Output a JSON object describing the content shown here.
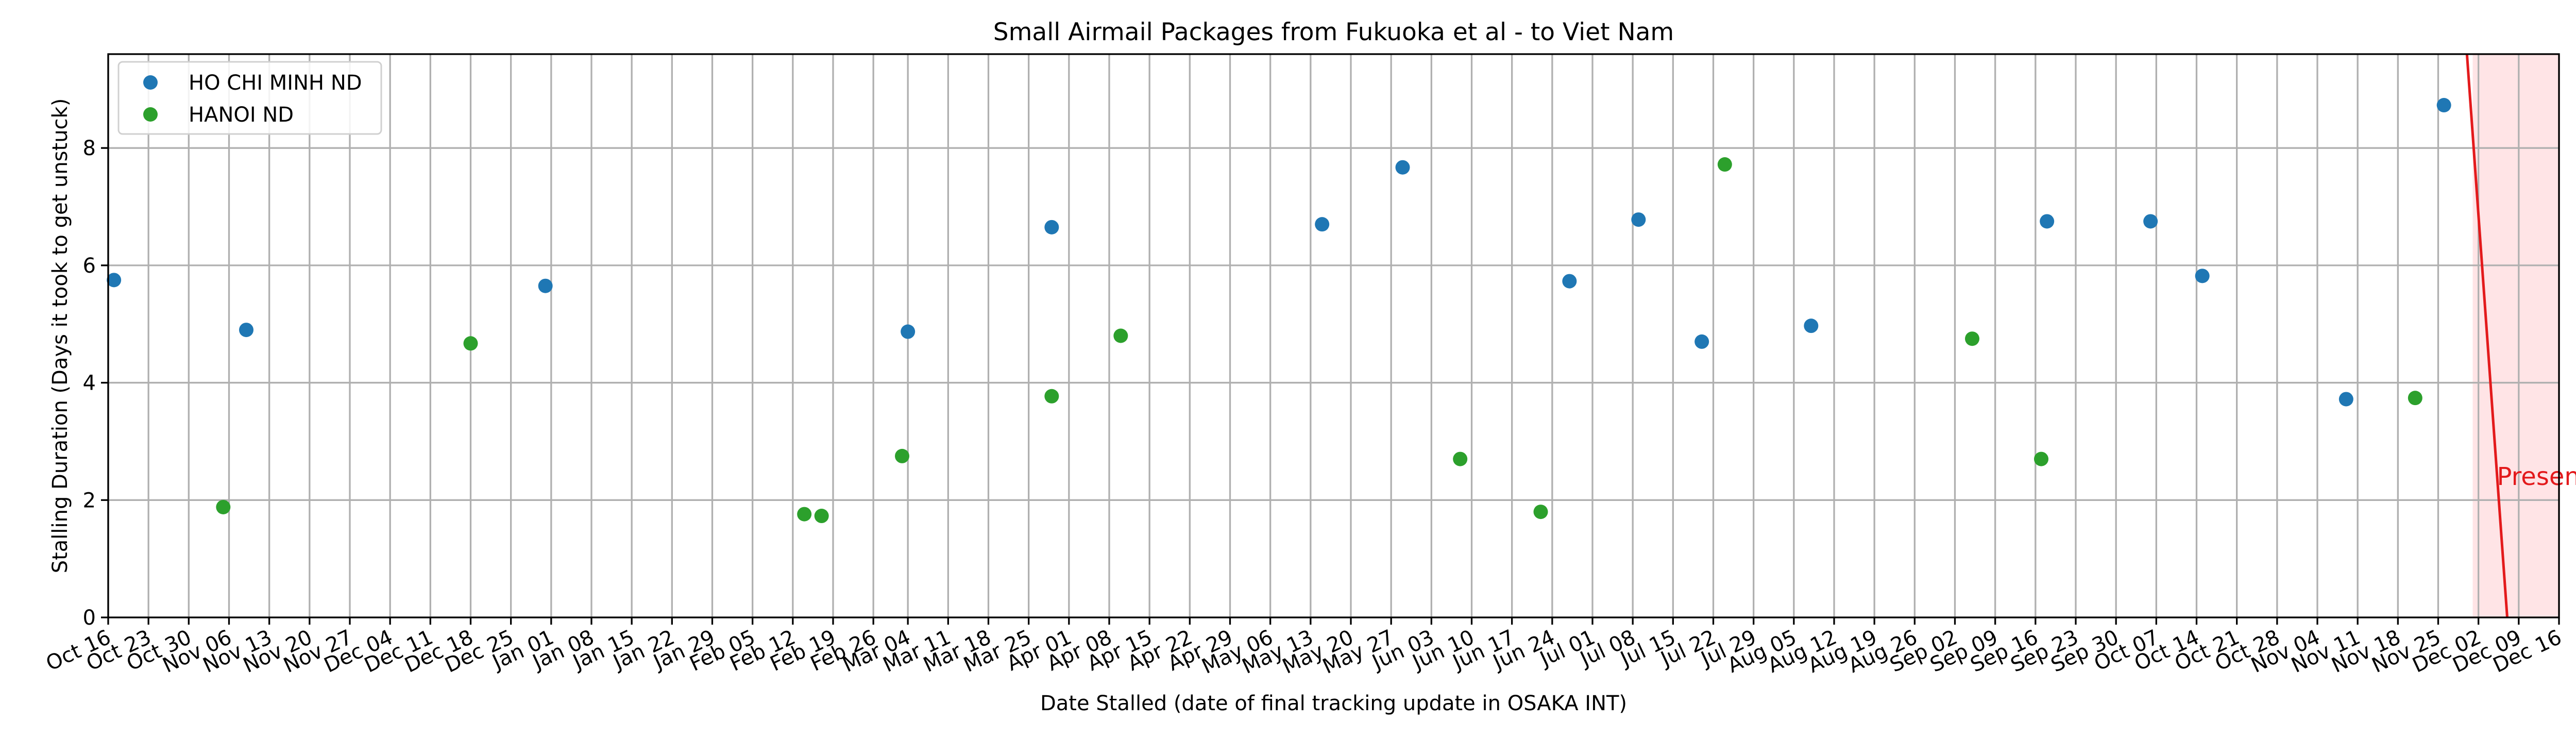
{
  "chart_data": {
    "type": "scatter",
    "title": "Small Airmail Packages from Fukuoka et al - to Viet Nam",
    "xlabel": "Date Stalled (date of final tracking update in OSAKA INT)",
    "ylabel": "Stalling Duration (Days it took to get unstuck)",
    "xlim": [
      "2022-10-16",
      "2023-12-16"
    ],
    "ylim": [
      0,
      9.6
    ],
    "yticks": [
      0,
      2,
      4,
      6,
      8
    ],
    "xticks": [
      {
        "date": "2022-10-16",
        "label": "Oct 16"
      },
      {
        "date": "2022-10-23",
        "label": "Oct 23"
      },
      {
        "date": "2022-10-30",
        "label": "Oct 30"
      },
      {
        "date": "2022-11-06",
        "label": "Nov 06"
      },
      {
        "date": "2022-11-13",
        "label": "Nov 13"
      },
      {
        "date": "2022-11-20",
        "label": "Nov 20"
      },
      {
        "date": "2022-11-27",
        "label": "Nov 27"
      },
      {
        "date": "2022-12-04",
        "label": "Dec 04"
      },
      {
        "date": "2022-12-11",
        "label": "Dec 11"
      },
      {
        "date": "2022-12-18",
        "label": "Dec 18"
      },
      {
        "date": "2022-12-25",
        "label": "Dec 25"
      },
      {
        "date": "2023-01-01",
        "label": "Jan 01"
      },
      {
        "date": "2023-01-08",
        "label": "Jan 08"
      },
      {
        "date": "2023-01-15",
        "label": "Jan 15"
      },
      {
        "date": "2023-01-22",
        "label": "Jan 22"
      },
      {
        "date": "2023-01-29",
        "label": "Jan 29"
      },
      {
        "date": "2023-02-05",
        "label": "Feb 05"
      },
      {
        "date": "2023-02-12",
        "label": "Feb 12"
      },
      {
        "date": "2023-02-19",
        "label": "Feb 19"
      },
      {
        "date": "2023-02-26",
        "label": "Feb 26"
      },
      {
        "date": "2023-03-04",
        "label": "Mar 04"
      },
      {
        "date": "2023-03-11",
        "label": "Mar 11"
      },
      {
        "date": "2023-03-18",
        "label": "Mar 18"
      },
      {
        "date": "2023-03-25",
        "label": "Mar 25"
      },
      {
        "date": "2023-04-01",
        "label": "Apr 01"
      },
      {
        "date": "2023-04-08",
        "label": "Apr 08"
      },
      {
        "date": "2023-04-15",
        "label": "Apr 15"
      },
      {
        "date": "2023-04-22",
        "label": "Apr 22"
      },
      {
        "date": "2023-04-29",
        "label": "Apr 29"
      },
      {
        "date": "2023-05-06",
        "label": "May 06"
      },
      {
        "date": "2023-05-13",
        "label": "May 13"
      },
      {
        "date": "2023-05-20",
        "label": "May 20"
      },
      {
        "date": "2023-05-27",
        "label": "May 27"
      },
      {
        "date": "2023-06-03",
        "label": "Jun 03"
      },
      {
        "date": "2023-06-10",
        "label": "Jun 10"
      },
      {
        "date": "2023-06-17",
        "label": "Jun 17"
      },
      {
        "date": "2023-06-24",
        "label": "Jun 24"
      },
      {
        "date": "2023-07-01",
        "label": "Jul 01"
      },
      {
        "date": "2023-07-08",
        "label": "Jul 08"
      },
      {
        "date": "2023-07-15",
        "label": "Jul 15"
      },
      {
        "date": "2023-07-22",
        "label": "Jul 22"
      },
      {
        "date": "2023-07-29",
        "label": "Jul 29"
      },
      {
        "date": "2023-08-05",
        "label": "Aug 05"
      },
      {
        "date": "2023-08-12",
        "label": "Aug 12"
      },
      {
        "date": "2023-08-19",
        "label": "Aug 19"
      },
      {
        "date": "2023-08-26",
        "label": "Aug 26"
      },
      {
        "date": "2023-09-02",
        "label": "Sep 02"
      },
      {
        "date": "2023-09-09",
        "label": "Sep 09"
      },
      {
        "date": "2023-09-16",
        "label": "Sep 16"
      },
      {
        "date": "2023-09-23",
        "label": "Sep 23"
      },
      {
        "date": "2023-09-30",
        "label": "Sep 30"
      },
      {
        "date": "2023-10-07",
        "label": "Oct 07"
      },
      {
        "date": "2023-10-14",
        "label": "Oct 14"
      },
      {
        "date": "2023-10-21",
        "label": "Oct 21"
      },
      {
        "date": "2023-10-28",
        "label": "Oct 28"
      },
      {
        "date": "2023-11-04",
        "label": "Nov 04"
      },
      {
        "date": "2023-11-11",
        "label": "Nov 11"
      },
      {
        "date": "2023-11-18",
        "label": "Nov 18"
      },
      {
        "date": "2023-11-25",
        "label": "Nov 25"
      },
      {
        "date": "2023-12-02",
        "label": "Dec 02"
      },
      {
        "date": "2023-12-09",
        "label": "Dec 09"
      },
      {
        "date": "2023-12-16",
        "label": "Dec 16"
      }
    ],
    "grid": true,
    "legend": "upper-left",
    "series": [
      {
        "name": "HO CHI MINH ND",
        "color": "#1f77b4",
        "points": [
          {
            "x": "2022-10-17",
            "y": 5.75
          },
          {
            "x": "2022-11-09",
            "y": 4.9
          },
          {
            "x": "2022-12-31",
            "y": 5.65
          },
          {
            "x": "2023-03-04",
            "y": 4.87
          },
          {
            "x": "2023-03-29",
            "y": 6.65
          },
          {
            "x": "2023-05-15",
            "y": 6.7
          },
          {
            "x": "2023-05-29",
            "y": 7.67
          },
          {
            "x": "2023-06-27",
            "y": 5.73
          },
          {
            "x": "2023-07-09",
            "y": 6.78
          },
          {
            "x": "2023-07-20",
            "y": 4.7
          },
          {
            "x": "2023-08-08",
            "y": 4.97
          },
          {
            "x": "2023-09-18",
            "y": 6.75
          },
          {
            "x": "2023-10-06",
            "y": 6.75
          },
          {
            "x": "2023-10-15",
            "y": 5.82
          },
          {
            "x": "2023-11-09",
            "y": 3.72
          },
          {
            "x": "2023-11-26",
            "y": 8.73
          }
        ]
      },
      {
        "name": "HANOI ND",
        "color": "#2ca02c",
        "points": [
          {
            "x": "2022-11-05",
            "y": 1.88
          },
          {
            "x": "2022-12-18",
            "y": 4.67
          },
          {
            "x": "2023-02-14",
            "y": 1.76
          },
          {
            "x": "2023-02-17",
            "y": 1.73
          },
          {
            "x": "2023-03-03",
            "y": 2.75
          },
          {
            "x": "2023-03-29",
            "y": 3.77
          },
          {
            "x": "2023-04-10",
            "y": 4.8
          },
          {
            "x": "2023-06-08",
            "y": 2.7
          },
          {
            "x": "2023-06-22",
            "y": 1.8
          },
          {
            "x": "2023-07-24",
            "y": 7.72
          },
          {
            "x": "2023-09-05",
            "y": 4.75
          },
          {
            "x": "2023-09-17",
            "y": 2.7
          },
          {
            "x": "2023-11-21",
            "y": 3.74
          }
        ]
      }
    ],
    "present_marker": {
      "label": "Present",
      "color": "#e31a1c",
      "shade_color": "#ffe4e6",
      "shade_start": "2023-12-01",
      "line_top": {
        "x": "2023-11-30",
        "y": 9.6
      },
      "line_bottom": {
        "x": "2023-12-07",
        "y": 0
      },
      "label_position": {
        "x": "2023-12-07",
        "y": 2.4
      }
    }
  }
}
